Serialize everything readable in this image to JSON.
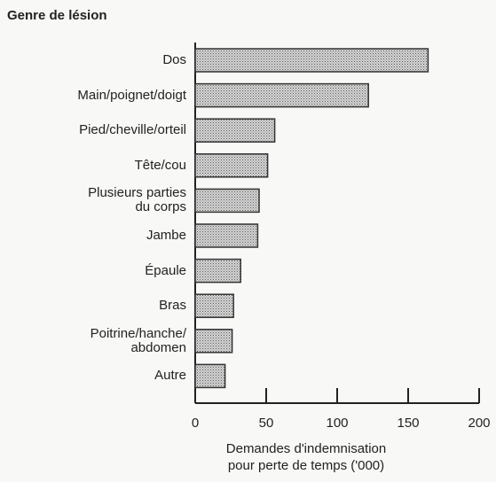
{
  "chart_data": {
    "type": "barh",
    "title": "Genre de lésion",
    "categories": [
      "Dos",
      "Main/poignet/doigt",
      "Pied/cheville/orteil",
      "Tête/cou",
      "Plusieurs parties\ndu corps",
      "Jambe",
      "Épaule",
      "Bras",
      "Poitrine/hanche/\nabdomen",
      "Autre"
    ],
    "values": [
      164,
      122,
      56,
      51,
      45,
      44,
      32,
      27,
      26,
      21
    ],
    "xlabel": "Demandes d'indemnisation\npour perte de temps ('000)",
    "xlim": [
      0,
      200
    ],
    "xticks": [
      0,
      50,
      100,
      150,
      200
    ],
    "color": "#c9c9c9"
  }
}
